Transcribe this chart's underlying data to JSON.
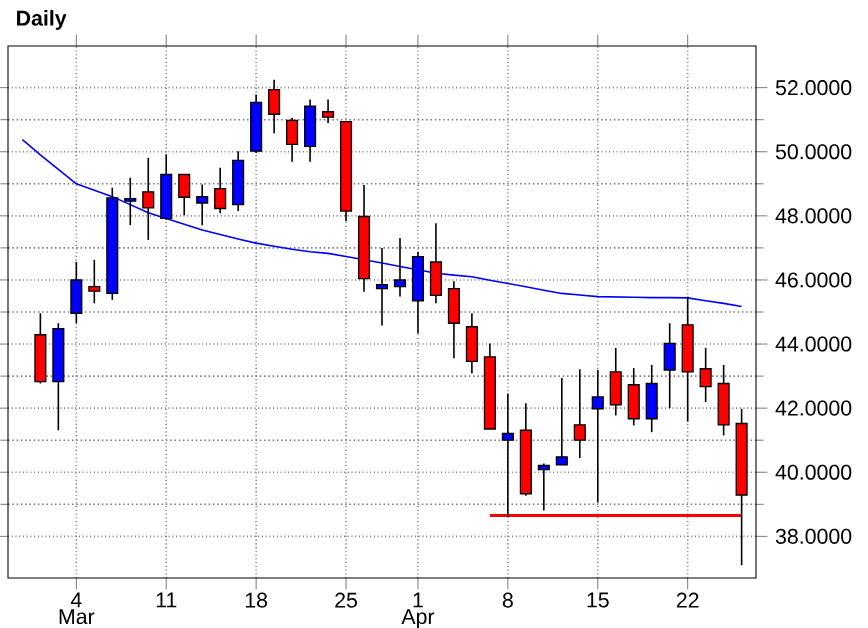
{
  "chart_data": {
    "type": "candlestick",
    "title": "Daily",
    "categories": [
      null,
      null,
      null,
      "4",
      null,
      null,
      null,
      null,
      "11",
      null,
      null,
      null,
      null,
      "18",
      null,
      null,
      null,
      null,
      "25",
      null,
      null,
      null,
      "1",
      null,
      null,
      null,
      null,
      "8",
      null,
      null,
      null,
      null,
      "15",
      null,
      null,
      null,
      null,
      "22",
      null,
      null,
      null
    ],
    "ohlc": [
      null,
      [
        44.29,
        44.96,
        42.77,
        42.83
      ],
      [
        42.83,
        44.65,
        41.31,
        44.48
      ],
      [
        44.96,
        46.56,
        44.65,
        46.0
      ],
      [
        45.79,
        46.63,
        45.27,
        45.65
      ],
      [
        45.58,
        48.88,
        45.38,
        48.56
      ],
      [
        48.46,
        49.19,
        47.71,
        48.54
      ],
      [
        48.75,
        49.81,
        47.25,
        48.25
      ],
      [
        47.92,
        49.92,
        47.88,
        49.29
      ],
      [
        49.29,
        49.29,
        48.02,
        48.58
      ],
      [
        48.4,
        48.98,
        47.71,
        48.6
      ],
      [
        48.85,
        49.5,
        48.08,
        48.23
      ],
      [
        48.35,
        50.02,
        48.15,
        49.73
      ],
      [
        50.02,
        51.79,
        49.96,
        51.54
      ],
      [
        51.94,
        52.25,
        50.58,
        51.17
      ],
      [
        50.98,
        51.06,
        49.69,
        50.23
      ],
      [
        50.17,
        51.63,
        49.69,
        51.42
      ],
      [
        51.25,
        51.63,
        50.9,
        51.08
      ],
      [
        50.94,
        50.94,
        47.83,
        48.15
      ],
      [
        47.98,
        48.96,
        45.63,
        46.04
      ],
      [
        45.73,
        47.0,
        44.58,
        45.85
      ],
      [
        45.79,
        47.31,
        45.48,
        46.0
      ],
      [
        45.35,
        46.88,
        44.33,
        46.73
      ],
      [
        46.56,
        47.77,
        45.27,
        45.52
      ],
      [
        45.73,
        45.96,
        43.56,
        44.65
      ],
      [
        44.54,
        44.96,
        43.08,
        43.46
      ],
      [
        43.6,
        44.02,
        41.35,
        41.35
      ],
      [
        41.0,
        42.46,
        38.6,
        41.21
      ],
      [
        41.31,
        42.15,
        39.27,
        39.33
      ],
      [
        40.08,
        40.27,
        38.81,
        40.21
      ],
      [
        40.23,
        42.94,
        40.23,
        40.48
      ],
      [
        41.48,
        43.21,
        40.44,
        41.0
      ],
      [
        41.98,
        43.19,
        39.06,
        42.35
      ],
      [
        43.13,
        43.88,
        41.77,
        42.1
      ],
      [
        42.73,
        43.25,
        41.46,
        41.67
      ],
      [
        41.67,
        43.35,
        41.25,
        42.77
      ],
      [
        43.19,
        44.65,
        42.0,
        44.02
      ],
      [
        44.6,
        45.48,
        41.58,
        43.13
      ],
      [
        43.23,
        43.88,
        42.19,
        42.67
      ],
      [
        42.77,
        43.35,
        41.15,
        41.48
      ],
      [
        41.52,
        41.98,
        37.1,
        39.29
      ]
    ],
    "colors": [
      null,
      "#ff0000",
      "#0000ff",
      "#0000ff",
      "#ff0000",
      "#0000ff",
      "#0000ff",
      "#ff0000",
      "#0000ff",
      "#ff0000",
      "#0000ff",
      "#ff0000",
      "#0000ff",
      "#0000ff",
      "#ff0000",
      "#ff0000",
      "#0000ff",
      "#ff0000",
      "#ff0000",
      "#ff0000",
      "#0000ff",
      "#0000ff",
      "#0000ff",
      "#ff0000",
      "#ff0000",
      "#ff0000",
      "#ff0000",
      "#0000ff",
      "#ff0000",
      "#0000ff",
      "#0000ff",
      "#ff0000",
      "#0000ff",
      "#ff0000",
      "#ff0000",
      "#0000ff",
      "#0000ff",
      "#ff0000",
      "#ff0000",
      "#ff0000",
      "#ff0000"
    ],
    "series": [
      {
        "type": "line",
        "color": "#0000ff",
        "values": [
          50.38,
          49.9,
          49.45,
          49.0,
          48.8,
          48.6,
          48.35,
          48.1,
          47.92,
          47.74,
          47.56,
          47.42,
          47.28,
          47.15,
          47.05,
          46.96,
          46.88,
          46.83,
          46.73,
          46.63,
          46.53,
          46.42,
          46.32,
          46.21,
          46.15,
          46.1,
          45.99,
          45.89,
          45.79,
          45.68,
          45.58,
          45.53,
          45.48,
          45.47,
          45.46,
          45.45,
          45.45,
          45.44,
          45.35,
          45.27,
          45.17
        ]
      },
      {
        "type": "line",
        "color": "#ff0000",
        "values": [
          null,
          null,
          null,
          null,
          null,
          null,
          null,
          null,
          null,
          null,
          null,
          null,
          null,
          null,
          null,
          null,
          null,
          null,
          null,
          null,
          null,
          null,
          null,
          null,
          null,
          null,
          38.65,
          38.65,
          38.65,
          38.65,
          38.65,
          38.65,
          38.65,
          38.65,
          38.65,
          38.65,
          38.65,
          38.65,
          38.65,
          38.65,
          38.65
        ]
      }
    ],
    "annotations": [
      "Mar",
      "Apr"
    ],
    "ylim": [
      36.7,
      53.3
    ],
    "yticks": [
      {
        "value": 38,
        "label": "38.0000"
      },
      {
        "value": 40,
        "label": "40.0000"
      },
      {
        "value": 42,
        "label": "42.0000"
      },
      {
        "value": 44,
        "label": "44.0000"
      },
      {
        "value": 46,
        "label": "46.0000"
      },
      {
        "value": 48,
        "label": "48.0000"
      },
      {
        "value": 50,
        "label": "50.0000"
      },
      {
        "value": 52,
        "label": "52.0000"
      }
    ],
    "grid": true
  }
}
